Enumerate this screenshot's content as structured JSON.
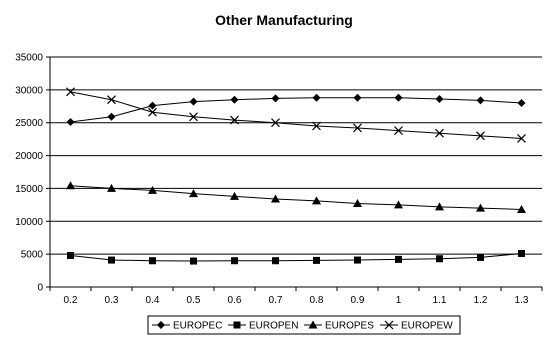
{
  "chart_data": {
    "type": "line",
    "title": "Other Manufacturing",
    "xlabel": "",
    "ylabel": "",
    "x": [
      "0.2",
      "0.3",
      "0.4",
      "0.5",
      "0.6",
      "0.7",
      "0.8",
      "0.9",
      "1",
      "1.1",
      "1.2",
      "1.3"
    ],
    "ylim": [
      0,
      35000
    ],
    "yticks": [
      0,
      5000,
      10000,
      15000,
      20000,
      25000,
      30000,
      35000
    ],
    "grid": "horizontal",
    "legend": "bottom",
    "series": [
      {
        "name": "EUROPEC",
        "marker": "diamond",
        "values": [
          25100,
          25900,
          27600,
          28200,
          28500,
          28700,
          28800,
          28800,
          28800,
          28600,
          28400,
          28000
        ]
      },
      {
        "name": "EUROPEN",
        "marker": "square",
        "values": [
          4800,
          4100,
          4000,
          3950,
          4000,
          4000,
          4050,
          4100,
          4200,
          4300,
          4500,
          5100
        ]
      },
      {
        "name": "EUROPES",
        "marker": "triangle",
        "values": [
          15400,
          15000,
          14700,
          14200,
          13800,
          13400,
          13100,
          12700,
          12500,
          12200,
          12000,
          11800
        ]
      },
      {
        "name": "EUROPEW",
        "marker": "x",
        "values": [
          29700,
          28500,
          26600,
          25900,
          25400,
          25000,
          24500,
          24200,
          23800,
          23400,
          23000,
          22600
        ]
      }
    ]
  }
}
